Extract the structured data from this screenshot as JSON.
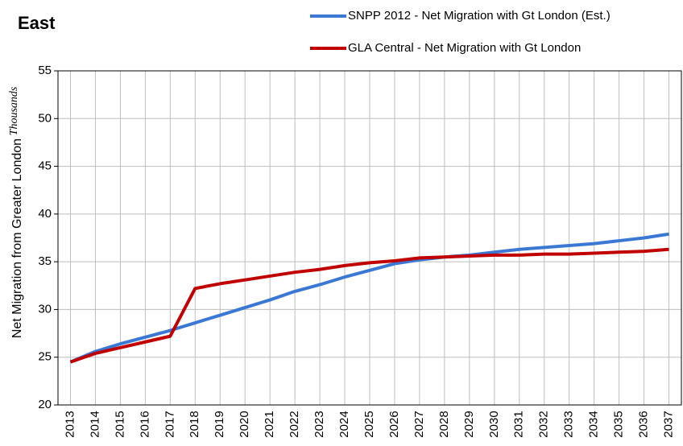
{
  "chart_data": {
    "type": "line",
    "title": "East",
    "y_label": "Net Migration from Greater London",
    "y_unit": "Thousands",
    "categories": [
      "2013",
      "2014",
      "2015",
      "2016",
      "2017",
      "2018",
      "2019",
      "2020",
      "2021",
      "2022",
      "2023",
      "2024",
      "2025",
      "2026",
      "2027",
      "2028",
      "2029",
      "2030",
      "2031",
      "2032",
      "2033",
      "2034",
      "2035",
      "2036",
      "2037"
    ],
    "series": [
      {
        "name": "SNPP 2012 - Net Migration with Gt London (Est.)",
        "color": "#3a78d4",
        "values": [
          24.5,
          25.6,
          26.4,
          27.1,
          27.8,
          28.6,
          29.4,
          30.2,
          31.0,
          31.9,
          32.6,
          33.4,
          34.1,
          34.8,
          35.2,
          35.5,
          35.7,
          36.0,
          36.3,
          36.5,
          36.7,
          36.9,
          37.2,
          37.5,
          37.9
        ]
      },
      {
        "name": "GLA Central - Net Migration with Gt London",
        "color": "#c00000",
        "values": [
          24.5,
          25.4,
          26.0,
          26.6,
          27.2,
          32.2,
          32.7,
          33.1,
          33.5,
          33.9,
          34.2,
          34.6,
          34.9,
          35.1,
          35.4,
          35.5,
          35.6,
          35.7,
          35.7,
          35.8,
          35.8,
          35.9,
          36.0,
          36.1,
          36.3
        ]
      }
    ],
    "ylim": [
      20,
      55
    ],
    "yticks": [
      20,
      25,
      30,
      35,
      40,
      45,
      50,
      55
    ],
    "grid": true
  }
}
